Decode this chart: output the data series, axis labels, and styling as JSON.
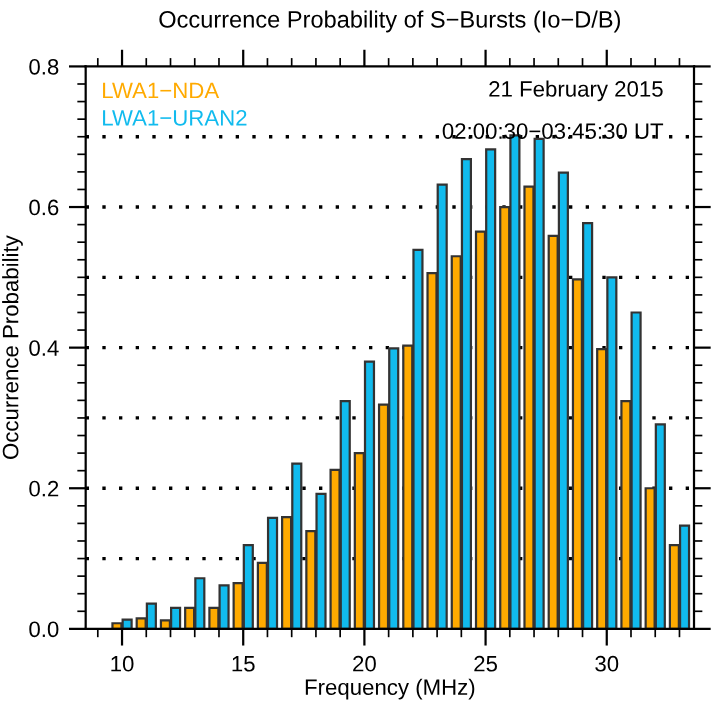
{
  "chart_data": {
    "type": "bar",
    "title": "Occurrence Probability of S−Bursts (Io−D/B)",
    "xlabel": "Frequency (MHz)",
    "ylabel": "Occurrence Probability",
    "x": [
      10,
      11,
      12,
      13,
      14,
      15,
      16,
      17,
      18,
      19,
      20,
      21,
      22,
      23,
      24,
      25,
      26,
      27,
      28,
      29,
      30,
      31,
      32,
      33
    ],
    "series": [
      {
        "name": "LWA1−NDA",
        "color": "#ffaa00",
        "values": [
          0.008,
          0.015,
          0.012,
          0.03,
          0.03,
          0.065,
          0.094,
          0.159,
          0.139,
          0.226,
          0.25,
          0.319,
          0.403,
          0.506,
          0.53,
          0.565,
          0.6,
          0.629,
          0.559,
          0.497,
          0.398,
          0.324,
          0.2,
          0.119
        ]
      },
      {
        "name": "LWA1−URAN2",
        "color": "#11bbee",
        "values": [
          0.013,
          0.036,
          0.03,
          0.072,
          0.062,
          0.119,
          0.158,
          0.235,
          0.192,
          0.324,
          0.38,
          0.399,
          0.539,
          0.632,
          0.668,
          0.682,
          0.702,
          0.697,
          0.649,
          0.577,
          0.5,
          0.45,
          0.291,
          0.147
        ]
      }
    ],
    "xlim": [
      8.5,
      33.6
    ],
    "xticks": [
      10,
      15,
      20,
      25,
      30
    ],
    "ylim": [
      0,
      0.8
    ],
    "yticks": [
      {
        "value": 0,
        "label": "0.0"
      },
      {
        "value": 0.2,
        "label": "0.2"
      },
      {
        "value": 0.4,
        "label": "0.4"
      },
      {
        "value": 0.6,
        "label": "0.6"
      },
      {
        "value": 0.8,
        "label": "0.8"
      }
    ],
    "ref_lines": [
      {
        "axis": "y",
        "value": 0.1,
        "color": "#000000",
        "line_style": "dotted"
      },
      {
        "axis": "y",
        "value": 0.2,
        "color": "#000000",
        "line_style": "dotted"
      },
      {
        "axis": "y",
        "value": 0.3,
        "color": "#000000",
        "line_style": "dotted"
      },
      {
        "axis": "y",
        "value": 0.4,
        "color": "#000000",
        "line_style": "dotted"
      },
      {
        "axis": "y",
        "value": 0.5,
        "color": "#000000",
        "line_style": "dotted"
      },
      {
        "axis": "y",
        "value": 0.6,
        "color": "#000000",
        "line_style": "dotted"
      },
      {
        "axis": "y",
        "value": 0.7,
        "color": "#000000",
        "line_style": "dotted"
      }
    ],
    "annotations": [
      "21 February 2015",
      "02:00:30−03:45:30 UT"
    ],
    "legend": "top left",
    "grid": false
  }
}
